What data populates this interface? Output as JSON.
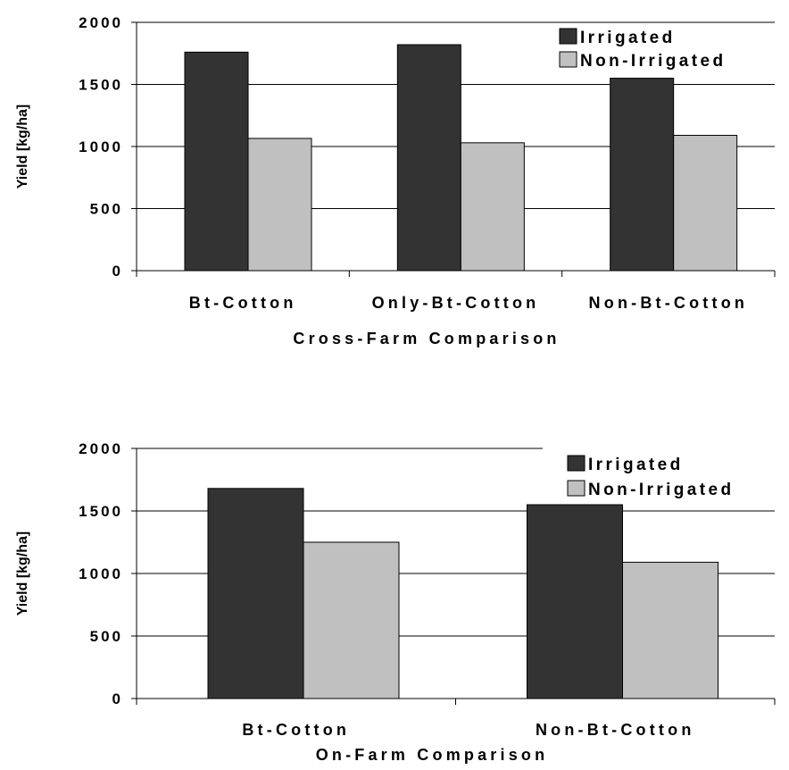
{
  "chart_data": [
    {
      "type": "bar",
      "categories": [
        "Bt-Cotton",
        "Only-Bt-Cotton",
        "Non-Bt-Cotton"
      ],
      "series": [
        {
          "name": "Irrigated",
          "values": [
            1760,
            1820,
            1550
          ]
        },
        {
          "name": "Non-Irrigated",
          "values": [
            1065,
            1030,
            1090
          ]
        }
      ],
      "xlabel": "Cross-Farm Comparison",
      "ylabel": "Yield [kg/ha]",
      "ylim": [
        0,
        2000
      ],
      "yticks": [
        0,
        500,
        1000,
        1500,
        2000
      ],
      "grid": true,
      "legend": "top-right"
    },
    {
      "type": "bar",
      "categories": [
        "Bt-Cotton",
        "Non-Bt-Cotton"
      ],
      "series": [
        {
          "name": "Irrigated",
          "values": [
            1680,
            1550
          ]
        },
        {
          "name": "Non-Irrigated",
          "values": [
            1250,
            1090
          ]
        }
      ],
      "xlabel": "On-Farm Comparison",
      "ylabel": "Yield [kg/ha]",
      "ylim": [
        0,
        2000
      ],
      "yticks": [
        0,
        500,
        1000,
        1500,
        2000
      ],
      "grid": true,
      "legend": "top-right"
    }
  ],
  "colors": {
    "irrigated": "#333333",
    "non_irrigated": "#c0c0c0"
  }
}
